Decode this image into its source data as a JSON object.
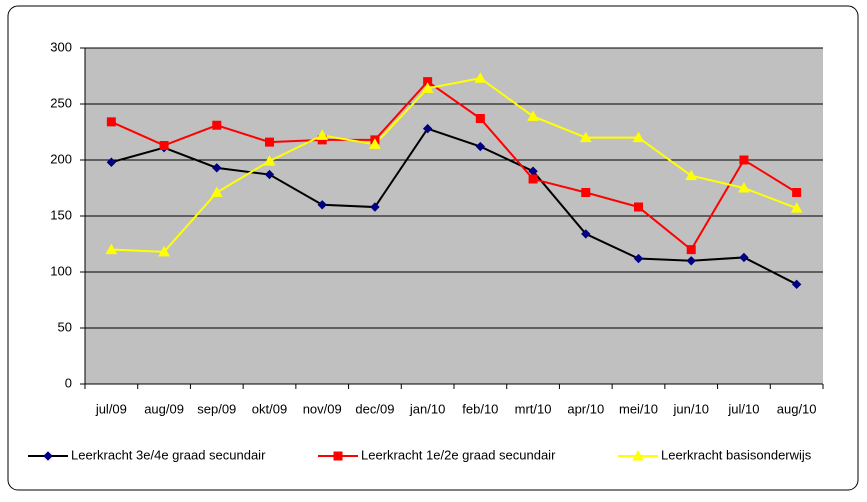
{
  "chart_data": {
    "type": "line",
    "categories": [
      "jul/09",
      "aug/09",
      "sep/09",
      "okt/09",
      "nov/09",
      "dec/09",
      "jan/10",
      "feb/10",
      "mrt/10",
      "apr/10",
      "mei/10",
      "jun/10",
      "jul/10",
      "aug/10"
    ],
    "series": [
      {
        "name": "Leerkracht 3e/4e graad secundair",
        "color": "#000000",
        "marker_color": "#000080",
        "marker": "diamond",
        "values": [
          198,
          211,
          193,
          187,
          160,
          158,
          228,
          212,
          190,
          134,
          112,
          110,
          113,
          89
        ]
      },
      {
        "name": "Leerkracht 1e/2e graad secundair",
        "color": "#ff0000",
        "marker_color": "#ff0000",
        "marker": "square",
        "values": [
          234,
          213,
          231,
          216,
          218,
          218,
          270,
          237,
          183,
          171,
          158,
          120,
          200,
          171
        ]
      },
      {
        "name": "Leerkracht basisonderwijs",
        "color": "#ffff00",
        "marker_color": "#ffff00",
        "marker": "triangle",
        "values": [
          120,
          118,
          171,
          199,
          222,
          214,
          264,
          273,
          239,
          220,
          220,
          186,
          175,
          157
        ]
      }
    ],
    "ylim": [
      0,
      300
    ],
    "yticks": [
      0,
      50,
      100,
      150,
      200,
      250,
      300
    ],
    "grid": true,
    "legend": "bottom"
  }
}
